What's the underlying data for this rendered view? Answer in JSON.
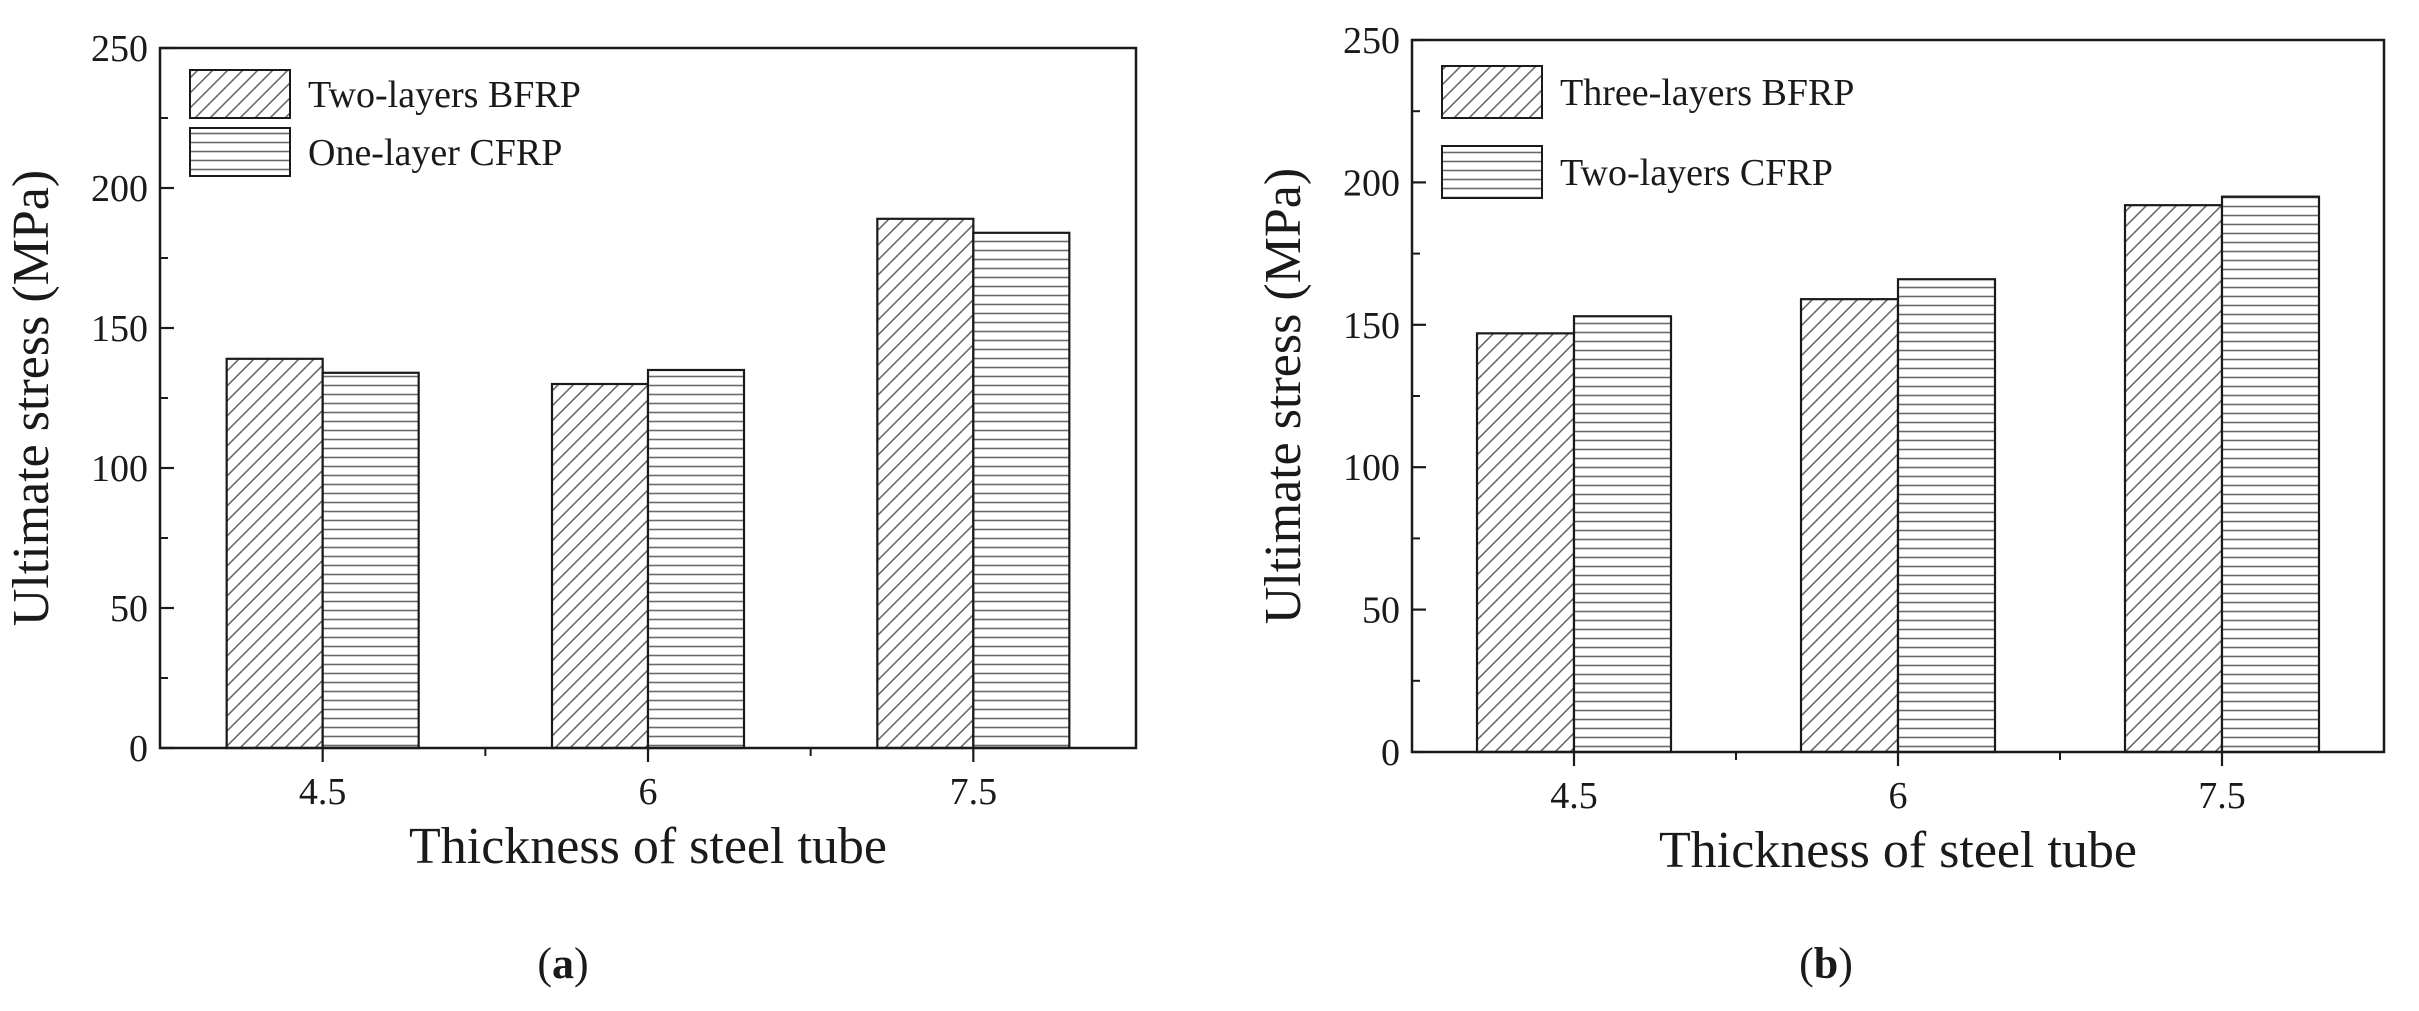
{
  "figure": {
    "panels": [
      {
        "id": "a",
        "label_open": "(",
        "label_letter": "a",
        "label_close": ")"
      },
      {
        "id": "b",
        "label_open": "(",
        "label_letter": "b",
        "label_close": ")"
      }
    ]
  },
  "chart_data": [
    {
      "type": "bar",
      "title": "",
      "xlabel": "Thickness of steel tube",
      "ylabel": "Ultimate stress (MPa)",
      "categories": [
        "4.5",
        "6",
        "7.5"
      ],
      "ylim": [
        0,
        250
      ],
      "yticks": [
        0,
        50,
        100,
        150,
        200,
        250
      ],
      "legend_position": "top-left",
      "series": [
        {
          "name": "Two-layers BFRP",
          "pattern": "diagonal",
          "values": [
            139,
            130,
            189
          ]
        },
        {
          "name": "One-layer CFRP",
          "pattern": "horizontal",
          "values": [
            134,
            135,
            184
          ]
        }
      ]
    },
    {
      "type": "bar",
      "title": "",
      "xlabel": "Thickness of steel tube",
      "ylabel": "Ultimate stress (MPa)",
      "categories": [
        "4.5",
        "6",
        "7.5"
      ],
      "ylim": [
        0,
        250
      ],
      "yticks": [
        0,
        50,
        100,
        150,
        200,
        250
      ],
      "legend_position": "top-left",
      "series": [
        {
          "name": "Three-layers BFRP",
          "pattern": "diagonal",
          "values": [
            147,
            159,
            192
          ]
        },
        {
          "name": "Two-layers CFRP",
          "pattern": "horizontal",
          "values": [
            153,
            166,
            195
          ]
        }
      ]
    }
  ],
  "colors": {
    "ink": "#1a1a1a",
    "background": "#ffffff",
    "hatch": "#6a6a6a"
  }
}
